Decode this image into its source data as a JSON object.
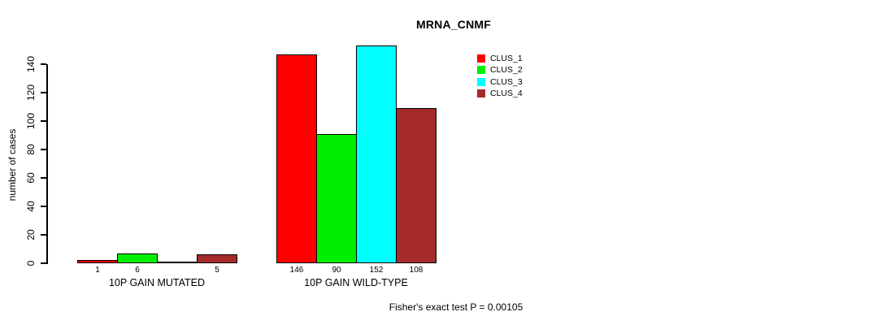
{
  "chart_data": {
    "type": "bar",
    "title": "MRNA_CNMF",
    "xlabel": "",
    "ylabel": "number of cases",
    "ylim": [
      0,
      140
    ],
    "yticks": [
      0,
      20,
      40,
      60,
      80,
      100,
      120,
      140
    ],
    "grid": false,
    "legend_position": "top-right",
    "categories": [
      "10P GAIN MUTATED",
      "10P GAIN WILD-TYPE"
    ],
    "series": [
      {
        "name": "CLUS_1",
        "color": "#FF0000",
        "values": [
          1,
          146
        ]
      },
      {
        "name": "CLUS_2",
        "color": "#00EE00",
        "values": [
          6,
          90
        ]
      },
      {
        "name": "CLUS_3",
        "color": "#00FFFF",
        "values": [
          0,
          152
        ]
      },
      {
        "name": "CLUS_4",
        "color": "#A52A2A",
        "values": [
          5,
          108
        ]
      }
    ],
    "bar_value_labels": [
      [
        "1",
        "6",
        "",
        "5"
      ],
      [
        "146",
        "90",
        "152",
        "108"
      ]
    ],
    "annotation": "Fisher's exact test P = 0.00105"
  }
}
